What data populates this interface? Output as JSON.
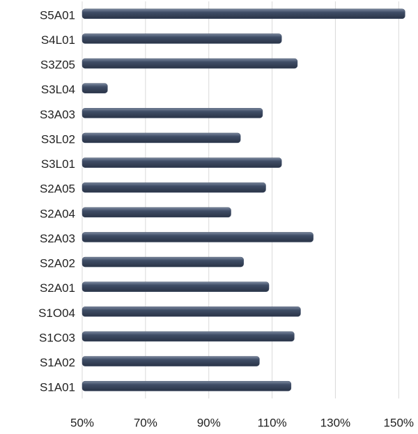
{
  "chart_data": {
    "type": "bar",
    "orientation": "horizontal",
    "categories": [
      "S5A01",
      "S4L01",
      "S3Z05",
      "S3L04",
      "S3A03",
      "S3L02",
      "S3L01",
      "S2A05",
      "S2A04",
      "S2A03",
      "S2A02",
      "S2A01",
      "S1O04",
      "S1C03",
      "S1A02",
      "S1A01"
    ],
    "values": [
      152,
      113,
      118,
      58,
      107,
      100,
      113,
      108,
      97,
      123,
      101,
      109,
      119,
      117,
      106,
      116
    ],
    "color": "#3f4d66",
    "xlim": [
      50,
      155
    ],
    "xticks": [
      {
        "value": 50,
        "label": "50%"
      },
      {
        "value": 70,
        "label": "70%"
      },
      {
        "value": 90,
        "label": "90%"
      },
      {
        "value": 110,
        "label": "110%"
      },
      {
        "value": 130,
        "label": "130%"
      },
      {
        "value": 150,
        "label": "150%"
      }
    ],
    "grid": true
  }
}
